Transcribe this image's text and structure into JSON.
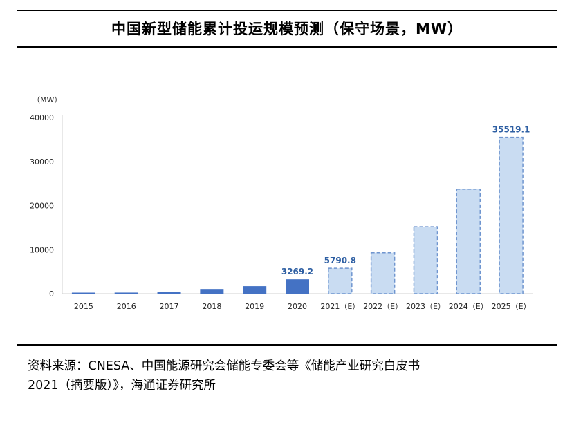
{
  "title": "中国新型储能累计投运规模预测（保守场景，MW）",
  "source": {
    "line1": "资料来源：CNESA、中国能源研究会储能专委会等《储能产业研究白皮书",
    "line2": "2021（摘要版）》，海通证券研究所"
  },
  "colors": {
    "actual_bar": "#4472c4",
    "forecast_fill": "#c9dcf2",
    "forecast_stroke": "#6f95cf",
    "label_text": "#2e5fa3",
    "axis_text": "#222222"
  },
  "chart_data": {
    "type": "bar",
    "unit_label": "（MW）",
    "categories": [
      "2015",
      "2016",
      "2017",
      "2018",
      "2019",
      "2020",
      "2021（E）",
      "2022（E）",
      "2023（E）",
      "2024（E）",
      "2025（E）"
    ],
    "values": [
      105,
      245,
      390,
      1072,
      1710,
      3269.2,
      5790.8,
      9300,
      15200,
      23700,
      35519.1
    ],
    "forecast": [
      false,
      false,
      false,
      false,
      false,
      false,
      true,
      true,
      true,
      true,
      true
    ],
    "data_labels": [
      "",
      "",
      "",
      "",
      "",
      "3269.2",
      "5790.8",
      "",
      "",
      "",
      "35519.1"
    ],
    "yticks": [
      0,
      10000,
      20000,
      30000,
      40000
    ],
    "ylim": [
      0,
      40000
    ],
    "grid": false,
    "legend": "none"
  }
}
